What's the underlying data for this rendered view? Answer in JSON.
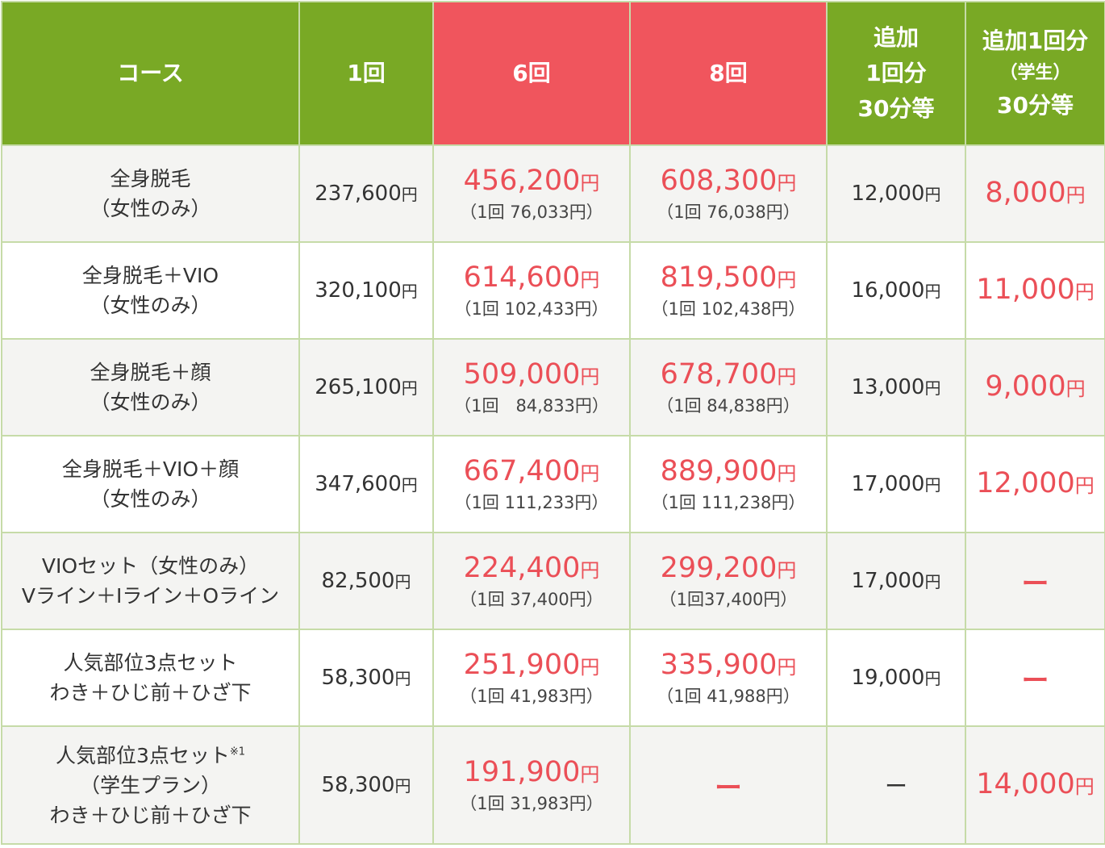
{
  "headers": {
    "course": "コース",
    "once": "1回",
    "six": "6回",
    "eight": "8回",
    "extra_line1": "追加",
    "extra_line2": "1回分",
    "extra_line3": "30分等",
    "student_line1": "追加1回分",
    "student_line2": "（学生）",
    "student_line3": "30分等"
  },
  "colors": {
    "header_green": "#79a925",
    "header_red": "#f0555d",
    "price_red": "#eb4f57",
    "border": "#c6dba8"
  },
  "rows": [
    {
      "course_lines": [
        "全身脱毛",
        "（女性のみ）"
      ],
      "once": "237,600",
      "once_yen": "円",
      "six": "456,200",
      "six_yen": "円",
      "six_per": "（1回 76,033円）",
      "eight": "608,300",
      "eight_yen": "円",
      "eight_per": "（1回 76,038円）",
      "extra": "12,000",
      "extra_yen": "円",
      "student": "8,000",
      "student_yen": "円"
    },
    {
      "course_lines": [
        "全身脱毛＋VIO",
        "（女性のみ）"
      ],
      "once": "320,100",
      "once_yen": "円",
      "six": "614,600",
      "six_yen": "円",
      "six_per": "（1回 102,433円）",
      "eight": "819,500",
      "eight_yen": "円",
      "eight_per": "（1回 102,438円）",
      "extra": "16,000",
      "extra_yen": "円",
      "student": "11,000",
      "student_yen": "円"
    },
    {
      "course_lines": [
        "全身脱毛＋顔",
        "（女性のみ）"
      ],
      "once": "265,100",
      "once_yen": "円",
      "six": "509,000",
      "six_yen": "円",
      "six_per": "（1回　84,833円）",
      "eight": "678,700",
      "eight_yen": "円",
      "eight_per": "（1回 84,838円）",
      "extra": "13,000",
      "extra_yen": "円",
      "student": "9,000",
      "student_yen": "円"
    },
    {
      "course_lines": [
        "全身脱毛＋VIO＋顔",
        "（女性のみ）"
      ],
      "once": "347,600",
      "once_yen": "円",
      "six": "667,400",
      "six_yen": "円",
      "six_per": "（1回 111,233円）",
      "eight": "889,900",
      "eight_yen": "円",
      "eight_per": "（1回 111,238円）",
      "extra": "17,000",
      "extra_yen": "円",
      "student": "12,000",
      "student_yen": "円"
    },
    {
      "course_lines": [
        "VIOセット（女性のみ）",
        "Vライン＋Iライン＋Oライン"
      ],
      "once": "82,500",
      "once_yen": "円",
      "six": "224,400",
      "six_yen": "円",
      "six_per": "（1回 37,400円）",
      "eight": "299,200",
      "eight_yen": "円",
      "eight_per": "（1回37,400円）",
      "extra": "17,000",
      "extra_yen": "円",
      "student_dash": "ー"
    },
    {
      "course_lines": [
        "人気部位3点セット",
        "わき＋ひじ前＋ひざ下"
      ],
      "once": "58,300",
      "once_yen": "円",
      "six": "251,900",
      "six_yen": "円",
      "six_per": "（1回 41,983円）",
      "eight": "335,900",
      "eight_yen": "円",
      "eight_per": "（1回 41,988円）",
      "extra": "19,000",
      "extra_yen": "円",
      "student_dash": "ー"
    },
    {
      "course_lines": [
        "人気部位3点セット",
        "（学生プラン）",
        "わき＋ひじ前＋ひざ下"
      ],
      "course_note": "※1",
      "once": "58,300",
      "once_yen": "円",
      "six": "191,900",
      "six_yen": "円",
      "six_per": "（1回 31,983円）",
      "eight_dash": "ー",
      "extra_dash": "ー",
      "student": "14,000",
      "student_yen": "円"
    }
  ]
}
